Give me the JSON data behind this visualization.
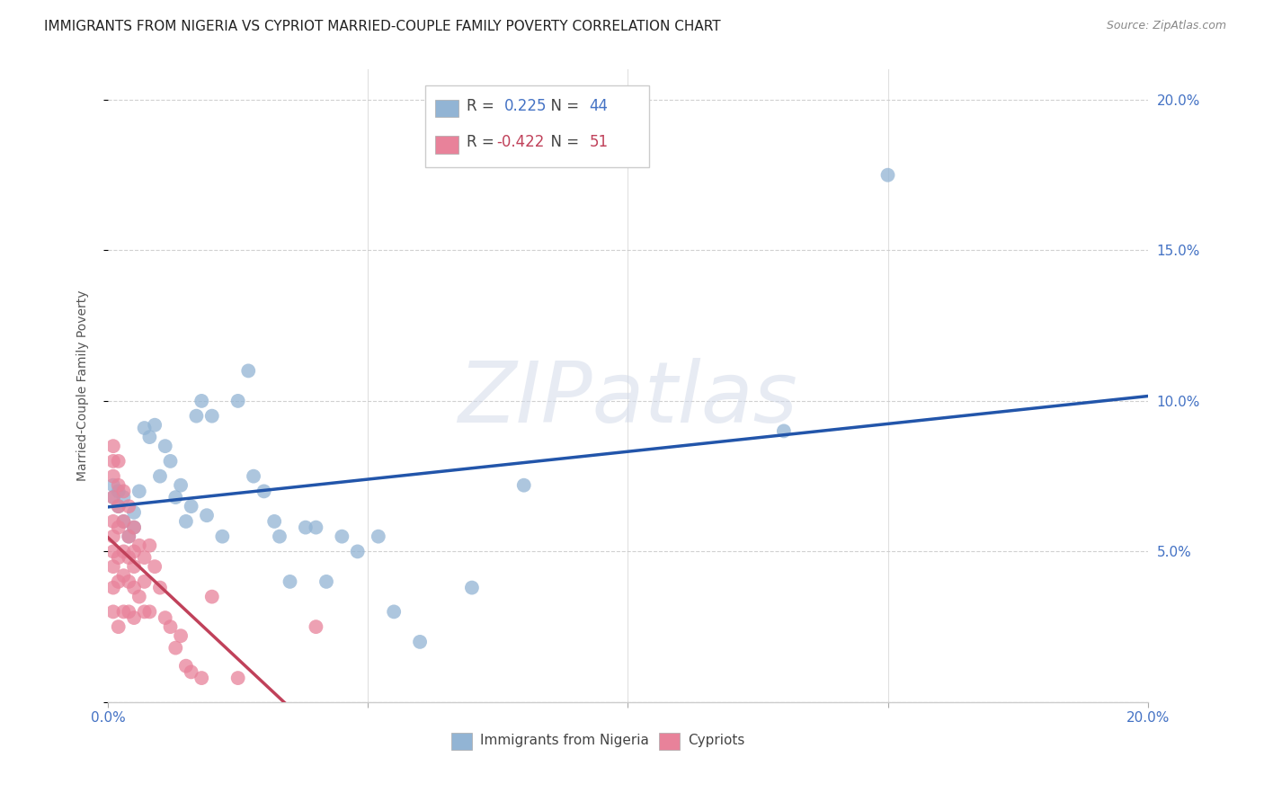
{
  "title": "IMMIGRANTS FROM NIGERIA VS CYPRIOT MARRIED-COUPLE FAMILY POVERTY CORRELATION CHART",
  "source": "Source: ZipAtlas.com",
  "ylabel": "Married-Couple Family Poverty",
  "x_min": 0.0,
  "x_max": 0.2,
  "y_min": 0.0,
  "y_max": 0.21,
  "x_ticks": [
    0.0,
    0.05,
    0.1,
    0.15,
    0.2
  ],
  "y_ticks": [
    0.0,
    0.05,
    0.1,
    0.15,
    0.2
  ],
  "y_tick_labels_right": [
    "",
    "5.0%",
    "10.0%",
    "15.0%",
    "20.0%"
  ],
  "nigeria_x": [
    0.001,
    0.001,
    0.002,
    0.002,
    0.003,
    0.003,
    0.004,
    0.005,
    0.005,
    0.006,
    0.007,
    0.008,
    0.009,
    0.01,
    0.011,
    0.012,
    0.013,
    0.014,
    0.015,
    0.016,
    0.017,
    0.018,
    0.019,
    0.02,
    0.022,
    0.025,
    0.027,
    0.028,
    0.03,
    0.032,
    0.033,
    0.035,
    0.038,
    0.04,
    0.042,
    0.045,
    0.048,
    0.052,
    0.055,
    0.06,
    0.07,
    0.08,
    0.13,
    0.15
  ],
  "nigeria_y": [
    0.068,
    0.072,
    0.065,
    0.07,
    0.06,
    0.068,
    0.055,
    0.058,
    0.063,
    0.07,
    0.091,
    0.088,
    0.092,
    0.075,
    0.085,
    0.08,
    0.068,
    0.072,
    0.06,
    0.065,
    0.095,
    0.1,
    0.062,
    0.095,
    0.055,
    0.1,
    0.11,
    0.075,
    0.07,
    0.06,
    0.055,
    0.04,
    0.058,
    0.058,
    0.04,
    0.055,
    0.05,
    0.055,
    0.03,
    0.02,
    0.038,
    0.072,
    0.09,
    0.175
  ],
  "cypriot_x": [
    0.001,
    0.001,
    0.001,
    0.001,
    0.001,
    0.001,
    0.001,
    0.001,
    0.001,
    0.001,
    0.002,
    0.002,
    0.002,
    0.002,
    0.002,
    0.002,
    0.002,
    0.003,
    0.003,
    0.003,
    0.003,
    0.003,
    0.004,
    0.004,
    0.004,
    0.004,
    0.004,
    0.005,
    0.005,
    0.005,
    0.005,
    0.005,
    0.006,
    0.006,
    0.007,
    0.007,
    0.007,
    0.008,
    0.008,
    0.009,
    0.01,
    0.011,
    0.012,
    0.013,
    0.014,
    0.015,
    0.016,
    0.018,
    0.02,
    0.025,
    0.04
  ],
  "cypriot_y": [
    0.085,
    0.08,
    0.075,
    0.068,
    0.06,
    0.055,
    0.05,
    0.045,
    0.038,
    0.03,
    0.08,
    0.072,
    0.065,
    0.058,
    0.048,
    0.04,
    0.025,
    0.07,
    0.06,
    0.05,
    0.042,
    0.03,
    0.065,
    0.055,
    0.048,
    0.04,
    0.03,
    0.058,
    0.05,
    0.045,
    0.038,
    0.028,
    0.052,
    0.035,
    0.048,
    0.04,
    0.03,
    0.052,
    0.03,
    0.045,
    0.038,
    0.028,
    0.025,
    0.018,
    0.022,
    0.012,
    0.01,
    0.008,
    0.035,
    0.008,
    0.025
  ],
  "nigeria_color": "#92b4d4",
  "cypriot_color": "#e8829a",
  "nigeria_line_color": "#2255aa",
  "cypriot_line_color": "#c0415a",
  "nigeria_R": 0.225,
  "nigeria_N": 44,
  "cypriot_R": -0.422,
  "cypriot_N": 51,
  "watermark": "ZIPatlas",
  "background_color": "#ffffff",
  "grid_color": "#cccccc",
  "title_fontsize": 11,
  "axis_label_fontsize": 10,
  "tick_fontsize": 11,
  "legend_R1": "0.225",
  "legend_N1": "44",
  "legend_R2": "-0.422",
  "legend_N2": "51",
  "legend_color1": "#4472c4",
  "legend_color2": "#c0415a"
}
